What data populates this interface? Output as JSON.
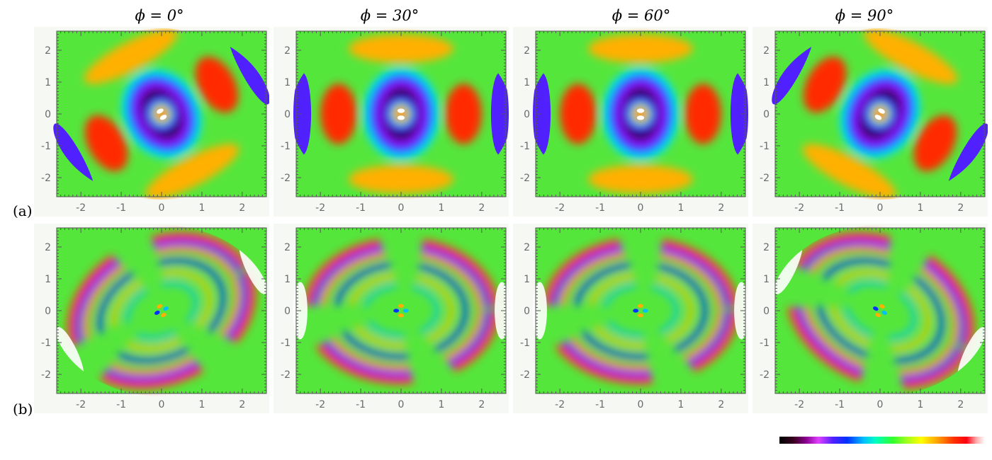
{
  "columns": [
    {
      "title": "ϕ = 0°"
    },
    {
      "title": "ϕ = 30°"
    },
    {
      "title": "ϕ = 60°"
    },
    {
      "title": "ϕ = 90°"
    }
  ],
  "rows": [
    {
      "label": "(a)"
    },
    {
      "label": "(b)"
    }
  ],
  "axes": {
    "x_ticks": [
      "-2",
      "-1",
      "0",
      "1",
      "2"
    ],
    "y_ticks": [
      "2",
      "1",
      "0",
      "-1",
      "-2"
    ]
  },
  "colors": {
    "background_field": "#55e63c",
    "colormap": [
      "#000000",
      "#8a0090",
      "#0030ff",
      "#00c0ff",
      "#30ff30",
      "#ffff00",
      "#ff3000",
      "#ffffff"
    ]
  }
}
